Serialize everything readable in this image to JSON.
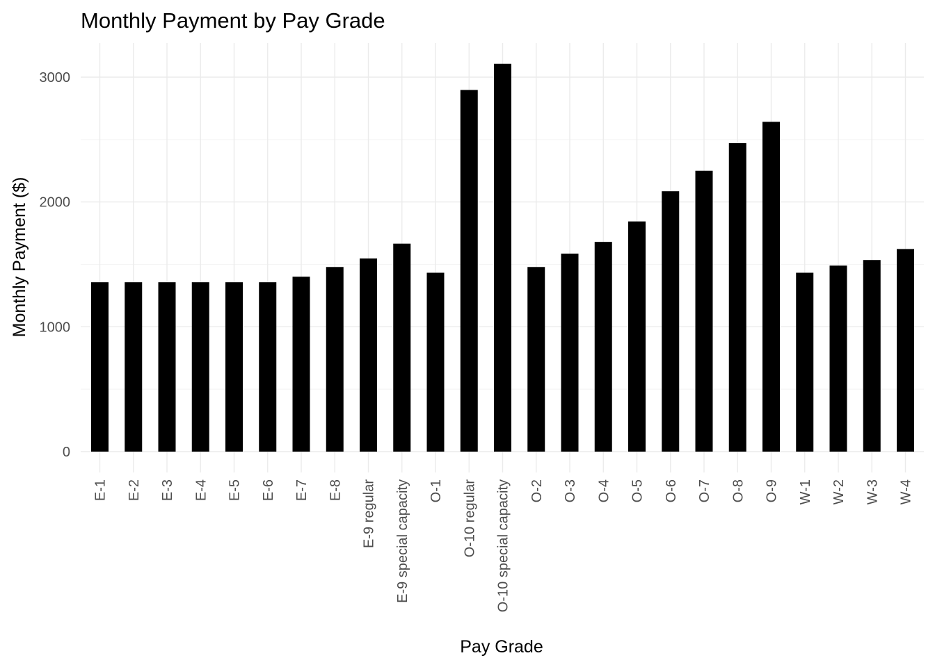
{
  "chart_data": {
    "type": "bar",
    "title": "Monthly Payment by Pay Grade",
    "xlabel": "Pay Grade",
    "ylabel": "Monthly Payment ($)",
    "ylim": [
      0,
      3300
    ],
    "yticks": [
      0,
      1000,
      2000,
      3000
    ],
    "grid": true,
    "bar_color": "#000000",
    "categories": [
      "E-1",
      "E-2",
      "E-3",
      "E-4",
      "E-5",
      "E-6",
      "E-7",
      "E-8",
      "E-9 regular",
      "E-9 special capacity",
      "O-1",
      "O-10 regular",
      "O-10 special capacity",
      "O-2",
      "O-3",
      "O-4",
      "O-5",
      "O-6",
      "O-7",
      "O-8",
      "O-9",
      "W-1",
      "W-2",
      "W-3",
      "W-4"
    ],
    "values": [
      1357,
      1357,
      1357,
      1357,
      1357,
      1357,
      1401,
      1479,
      1547,
      1666,
      1433,
      2897,
      3107,
      1479,
      1586,
      1680,
      1844,
      2086,
      2250,
      2471,
      2642,
      1433,
      1490,
      1535,
      1623
    ]
  }
}
